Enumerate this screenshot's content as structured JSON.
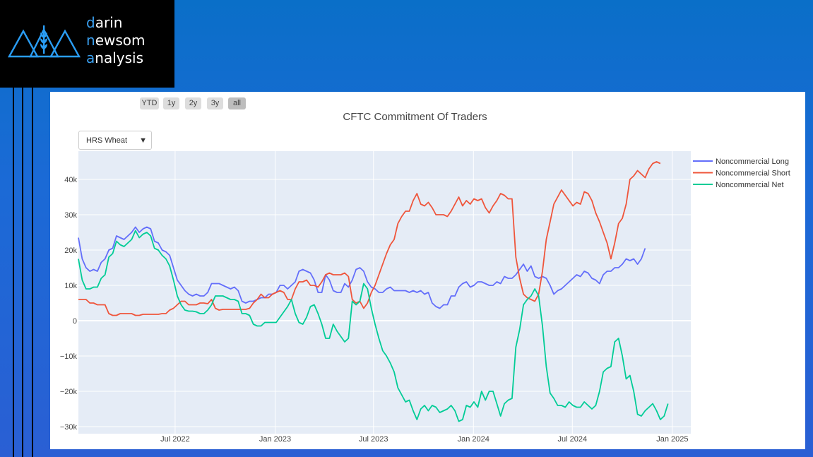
{
  "logo": {
    "line1_accent": "d",
    "line1_rest": "arin",
    "line2_accent": "n",
    "line2_rest": "ewsom",
    "line3_accent": "a",
    "line3_rest": "nalysis"
  },
  "range_buttons": [
    "YTD",
    "1y",
    "2y",
    "3y",
    "all"
  ],
  "active_range": "all",
  "dropdown": {
    "selected": "HRS Wheat",
    "arrow": "▼"
  },
  "colors": {
    "long": "#636efa",
    "short": "#ef553b",
    "net": "#00cc96",
    "plot_bg": "#e5ecf6"
  },
  "chart_data": {
    "type": "line",
    "title": "CFTC Commitment Of Traders",
    "x_start": "2022-01-04",
    "x_step_days": 7,
    "xlim": [
      "2022-01-04",
      "2025-02-04"
    ],
    "x_ticks": [
      "Jul 2022",
      "Jan 2023",
      "Jul 2023",
      "Jan 2024",
      "Jul 2024",
      "Jan 2025"
    ],
    "x_tick_dates": [
      "2022-07-01",
      "2023-01-01",
      "2023-07-01",
      "2024-01-01",
      "2024-07-01",
      "2025-01-01"
    ],
    "ylim": [
      -32000,
      48000
    ],
    "y_ticks": [
      -30000,
      -20000,
      -10000,
      0,
      10000,
      20000,
      30000,
      40000
    ],
    "y_tick_labels": [
      "−30k",
      "−20k",
      "−10k",
      "0",
      "10k",
      "20k",
      "30k",
      "40k"
    ],
    "grid": true,
    "legend_position": "top-right",
    "series": [
      {
        "name": "Noncommercial Long",
        "color": "#636efa",
        "values": [
          23500,
          17500,
          15000,
          14000,
          14500,
          14000,
          16500,
          17500,
          20000,
          20500,
          24000,
          23500,
          23000,
          24000,
          25000,
          26500,
          25000,
          26000,
          26500,
          26000,
          22500,
          22000,
          20000,
          19500,
          18500,
          15000,
          11500,
          10000,
          8500,
          7500,
          7000,
          7500,
          7000,
          7000,
          8000,
          10500,
          10500,
          10500,
          10000,
          9500,
          9000,
          9500,
          8500,
          5500,
          5000,
          5500,
          5500,
          6000,
          6500,
          6500,
          7500,
          7500,
          8000,
          10000,
          10000,
          9000,
          10000,
          11000,
          14000,
          14500,
          14000,
          13500,
          11500,
          8000,
          8000,
          13000,
          11500,
          8500,
          8000,
          8000,
          10500,
          9500,
          11500,
          14500,
          15000,
          14000,
          11000,
          9500,
          9000,
          8000,
          8000,
          9000,
          9500,
          8500,
          8500,
          8500,
          8500,
          8000,
          8500,
          8000,
          8500,
          7500,
          8000,
          5000,
          4000,
          3500,
          4500,
          4500,
          7000,
          7000,
          9500,
          10500,
          11000,
          9500,
          10000,
          11000,
          11000,
          10500,
          10000,
          10000,
          11000,
          10500,
          12500,
          12000,
          12000,
          13000,
          14500,
          16000,
          14000,
          15500,
          12500,
          12000,
          12500,
          12000,
          10000,
          7500,
          8500,
          9000,
          10000,
          11000,
          12000,
          13000,
          12500,
          14000,
          13500,
          12000,
          11500,
          10500,
          13000,
          14000,
          14000,
          15000,
          15000,
          16000,
          17500,
          17000,
          17500,
          16000,
          17500,
          20500
        ]
      },
      {
        "name": "Noncommercial Short",
        "color": "#ef553b",
        "values": [
          6000,
          6000,
          6000,
          5000,
          5000,
          4500,
          4500,
          4500,
          2000,
          1500,
          1500,
          2000,
          2000,
          2000,
          2000,
          1500,
          1500,
          1800,
          1800,
          1800,
          1800,
          1800,
          2000,
          2000,
          3000,
          3500,
          4500,
          5500,
          5500,
          4500,
          4500,
          4500,
          5000,
          5000,
          4800,
          6000,
          3500,
          3000,
          3200,
          3200,
          3200,
          3200,
          3200,
          3200,
          3200,
          3500,
          5000,
          6000,
          7500,
          6500,
          6500,
          7500,
          8000,
          8500,
          8000,
          6000,
          6000,
          9000,
          11000,
          11000,
          11500,
          10000,
          10000,
          9500,
          11000,
          13000,
          13500,
          13000,
          13000,
          13000,
          13500,
          12500,
          6000,
          5000,
          5500,
          3500,
          5000,
          8000,
          10000,
          13000,
          16000,
          19000,
          21500,
          23000,
          27500,
          29500,
          31000,
          31000,
          34000,
          36000,
          33000,
          32500,
          33500,
          32000,
          30000,
          30000,
          30000,
          29500,
          31000,
          33000,
          35000,
          32500,
          34000,
          33000,
          34500,
          34000,
          34500,
          32000,
          30500,
          32500,
          34000,
          36000,
          35500,
          34500,
          34500,
          18000,
          12000,
          7500,
          6500,
          6000,
          5500,
          7500,
          14000,
          23000,
          28000,
          33000,
          35000,
          37000,
          35500,
          34000,
          32500,
          33500,
          33000,
          36500,
          36000,
          34000,
          30500,
          28000,
          25000,
          22000,
          17500,
          22000,
          27500,
          29000,
          33000,
          40000,
          41000,
          42500,
          41500,
          40500,
          43000,
          44500,
          45000,
          44500
        ]
      },
      {
        "name": "Noncommercial Net",
        "color": "#00cc96",
        "values": [
          17500,
          11500,
          9000,
          9000,
          9500,
          9500,
          12000,
          13000,
          18000,
          19000,
          22500,
          21500,
          21000,
          22000,
          23000,
          25500,
          23500,
          24500,
          25000,
          24000,
          20500,
          20000,
          18500,
          17500,
          15500,
          11500,
          7000,
          4500,
          3000,
          2700,
          2700,
          2500,
          2000,
          2000,
          3000,
          4500,
          7000,
          7000,
          7000,
          6500,
          6000,
          6000,
          5500,
          2000,
          2000,
          1500,
          -1000,
          -1500,
          -1500,
          -500,
          -500,
          -500,
          -500,
          1000,
          2500,
          4000,
          6000,
          2000,
          -500,
          -1000,
          1000,
          4000,
          4500,
          2000,
          -1000,
          -5000,
          -5000,
          -1000,
          -3000,
          -4500,
          -6000,
          -5000,
          5500,
          4500,
          5500,
          10500,
          9000,
          3500,
          -1000,
          -5000,
          -8500,
          -10000,
          -12000,
          -14500,
          -19000,
          -21000,
          -23000,
          -22500,
          -25500,
          -28000,
          -25000,
          -24000,
          -25500,
          -24000,
          -24500,
          -26000,
          -25500,
          -25000,
          -24000,
          -25500,
          -28500,
          -28000,
          -24000,
          -24500,
          -23000,
          -24500,
          -20000,
          -22500,
          -20000,
          -20000,
          -23500,
          -27000,
          -23500,
          -22500,
          -22000,
          -7500,
          -2500,
          4500,
          6000,
          7000,
          9000,
          7000,
          -1500,
          -13000,
          -20500,
          -22000,
          -24000,
          -24000,
          -24500,
          -23000,
          -24000,
          -24500,
          -24500,
          -23000,
          -24000,
          -25000,
          -24000,
          -20000,
          -14500,
          -13500,
          -13000,
          -6000,
          -5000,
          -10000,
          -16500,
          -15500,
          -20000,
          -26500,
          -27000,
          -25500,
          -24500,
          -23500,
          -25500,
          -28000,
          -27000,
          -23500
        ]
      }
    ]
  }
}
